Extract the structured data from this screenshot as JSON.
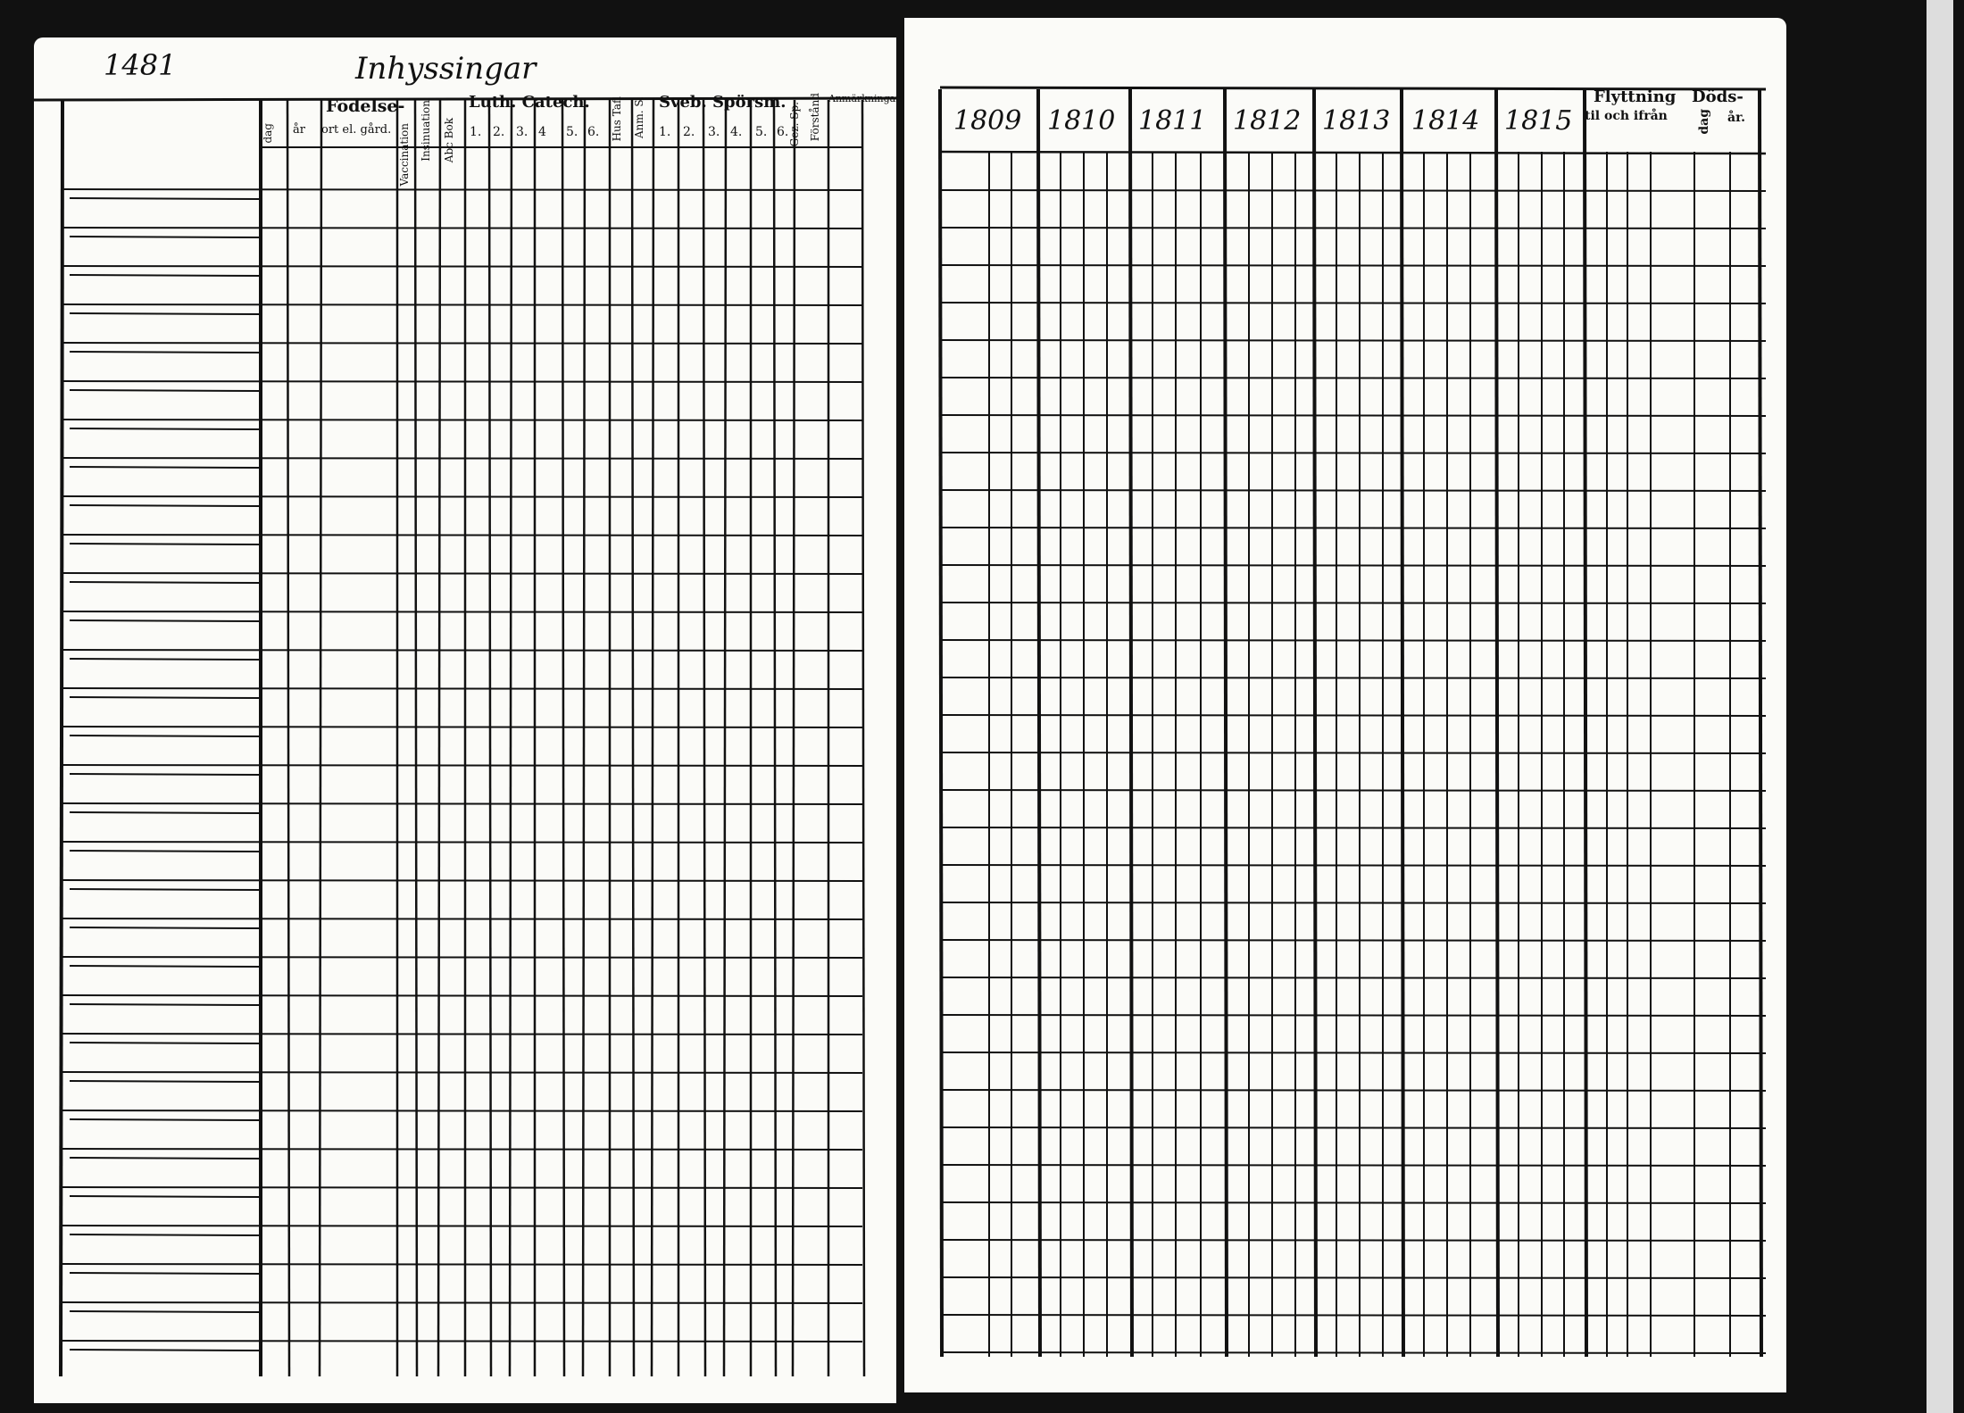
{
  "left_page": {
    "page_number": "1481",
    "title": "Inhyssingar",
    "headers": {
      "fodelse": "Födelse-",
      "dag": "dag",
      "ar": "år",
      "ort": "ort el. gård.",
      "vaccination": "Vaccination",
      "insinuation": "Insinuation",
      "abc_bok": "Abc Bok",
      "luth_catech": "Luth. Catech.",
      "luth_nums": [
        "1.",
        "2.",
        "3.",
        "4",
        "5.",
        "6."
      ],
      "hus_tafl": "Hus Tafl",
      "anm": "Anm. S.",
      "sveb_sporsm": "Sveb. Spörsm.",
      "sveb_nums": [
        "1.",
        "2.",
        "3.",
        "4.",
        "5.",
        "6."
      ],
      "gez_sp": "Gez. Sp.",
      "forstand": "Förstånd",
      "anmarkningar": "Anmärkningar."
    }
  },
  "right_page": {
    "years": [
      "1809",
      "1810",
      "1811",
      "1812",
      "1813",
      "1814",
      "1815"
    ],
    "flyttning": "Flyttning",
    "flyttning_sub": "til och ifrån",
    "dods": "Döds-",
    "dods_dag": "dag",
    "dods_ar": "år."
  }
}
